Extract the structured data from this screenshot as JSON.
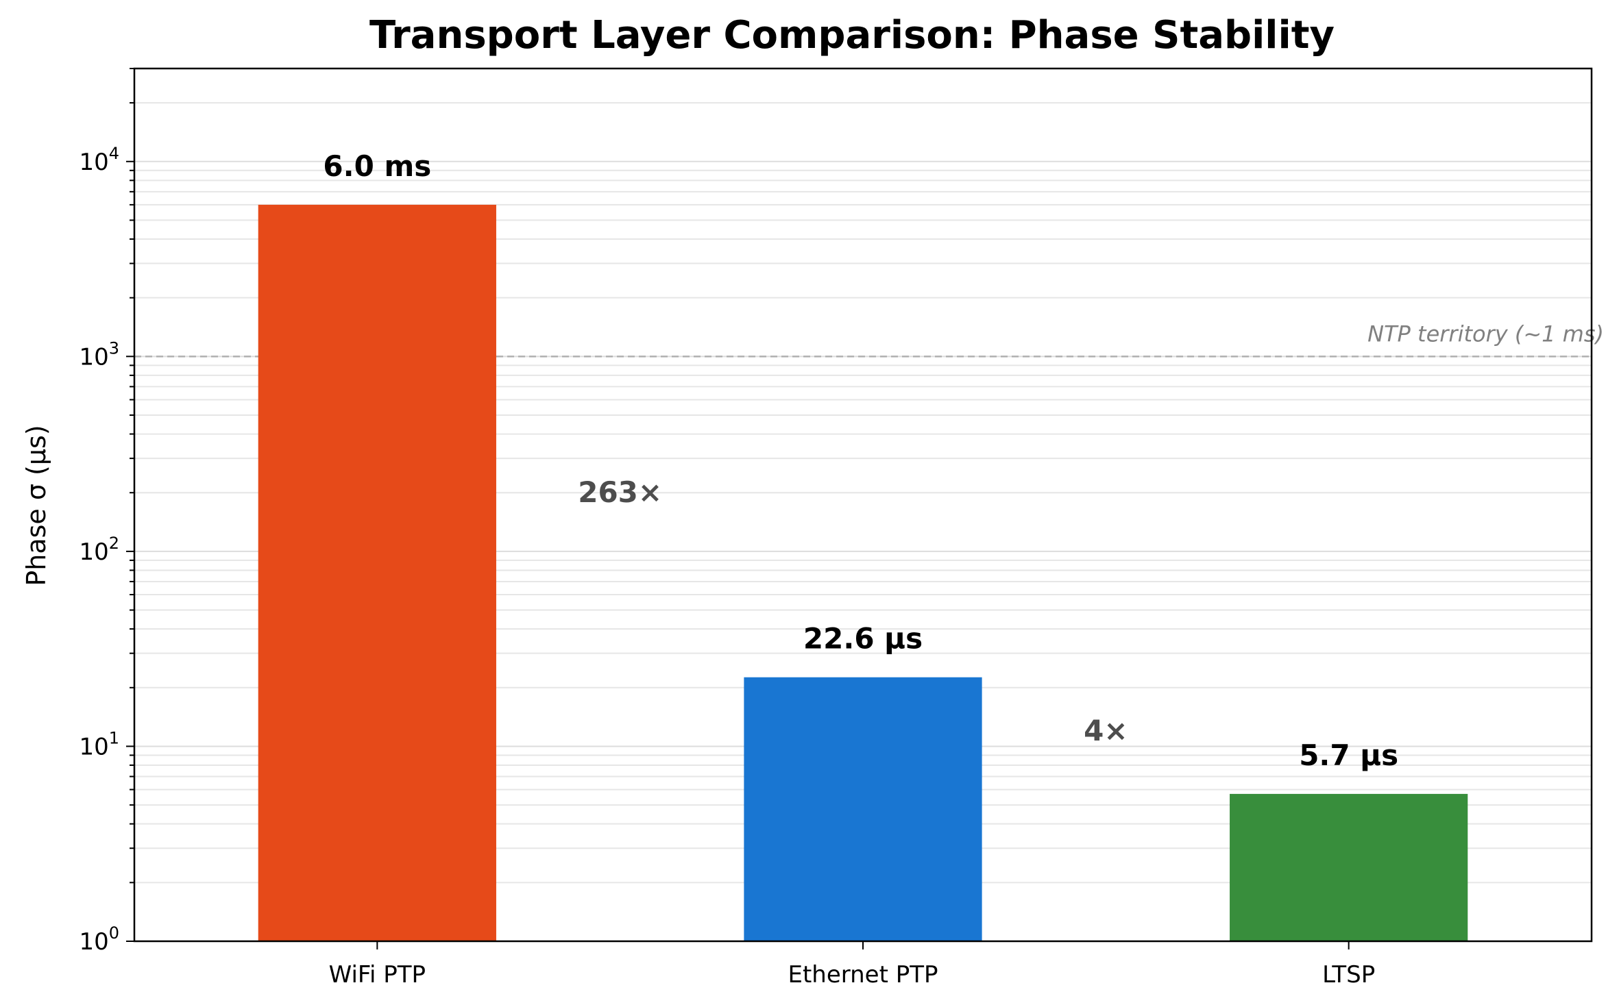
{
  "chart_data": {
    "type": "bar",
    "title": "Transport Layer Comparison: Phase Stability",
    "xlabel": "",
    "ylabel": "Phase σ (µs)",
    "yscale": "log",
    "ylim": [
      1,
      30000
    ],
    "grid": "y-major-and-minor",
    "categories": [
      "WiFi PTP",
      "Ethernet PTP",
      "LTSP"
    ],
    "values": [
      6000,
      22.6,
      5.7
    ],
    "bar_labels": [
      "6.0 ms",
      "22.6 µs",
      "5.7 µs"
    ],
    "colors": [
      "#e64a19",
      "#1976d2",
      "#388e3c"
    ],
    "yticks": [
      {
        "value": 1,
        "base": "10",
        "exp": "0"
      },
      {
        "value": 10,
        "base": "10",
        "exp": "1"
      },
      {
        "value": 100,
        "base": "10",
        "exp": "2"
      },
      {
        "value": 1000,
        "base": "10",
        "exp": "3"
      },
      {
        "value": 10000,
        "base": "10",
        "exp": "4"
      }
    ],
    "reference_line": {
      "value": 1000,
      "label": "NTP territory (~1 ms)",
      "color": "#b0b0b0",
      "style": "dashed"
    },
    "annotations": [
      {
        "text": "263×",
        "between": [
          0,
          1
        ],
        "y": 200
      },
      {
        "text": "4×",
        "between": [
          1,
          2
        ],
        "y": 12
      }
    ]
  }
}
